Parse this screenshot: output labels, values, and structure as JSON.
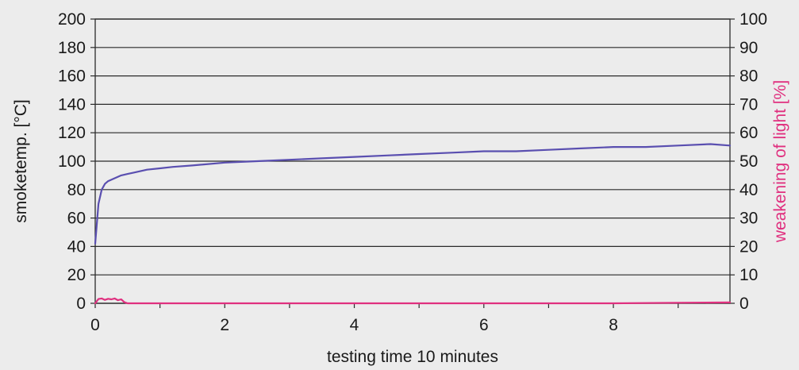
{
  "chart_data": {
    "type": "line",
    "title": "",
    "xlabel": "testing time 10 minutes",
    "ylabel_left": "smoketemp. [°C]",
    "ylabel_right": "weakening of light [%]",
    "xlim": [
      0,
      9.8
    ],
    "ylim_left": [
      0,
      200
    ],
    "ylim_right": [
      0,
      100
    ],
    "x_ticks": [
      0,
      2,
      4,
      6,
      8
    ],
    "y_ticks_left": [
      0,
      20,
      40,
      60,
      80,
      100,
      120,
      140,
      160,
      180,
      200
    ],
    "y_ticks_right": [
      0,
      10,
      20,
      30,
      40,
      50,
      60,
      70,
      80,
      90,
      100
    ],
    "grid": true,
    "colors": {
      "temperature": "#5a4fb0",
      "light": "#e0307f",
      "grid": "#2a2a2a",
      "background": "#ececec"
    },
    "series": [
      {
        "axis": "left",
        "x": [
          0,
          0.05,
          0.1,
          0.15,
          0.2,
          0.3,
          0.4,
          0.5,
          0.6,
          0.8,
          1.0,
          1.2,
          1.5,
          2.0,
          2.5,
          3.0,
          3.5,
          4.0,
          4.5,
          5.0,
          5.5,
          6.0,
          6.5,
          7.0,
          7.5,
          8.0,
          8.5,
          9.0,
          9.5,
          9.8
        ],
        "values": [
          42,
          70,
          80,
          84,
          86,
          88,
          90,
          91,
          92,
          94,
          95,
          96,
          97,
          99,
          100,
          101,
          102,
          103,
          104,
          105,
          106,
          107,
          107,
          108,
          109,
          110,
          110,
          111,
          112,
          111
        ]
      },
      {
        "axis": "right",
        "x": [
          0,
          0.05,
          0.1,
          0.15,
          0.2,
          0.25,
          0.3,
          0.35,
          0.4,
          0.45,
          0.5,
          1.0,
          2.0,
          3.0,
          4.0,
          5.0,
          6.0,
          7.0,
          8.0,
          9.0,
          9.8
        ],
        "values": [
          0,
          1.5,
          1.7,
          1.2,
          1.6,
          1.4,
          1.7,
          1.1,
          1.4,
          0.4,
          0,
          0,
          0,
          0,
          0,
          0,
          0,
          0,
          0,
          0.2,
          0.3
        ]
      }
    ]
  }
}
